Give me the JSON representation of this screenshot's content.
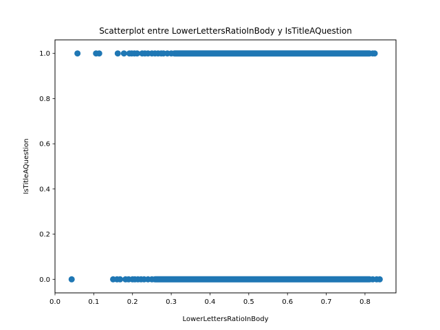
{
  "chart_data": {
    "type": "scatter",
    "title": "Scatterplot entre LowerLettersRatioInBody y IsTitleAQuestion",
    "xlabel": "LowerLettersRatioInBody",
    "ylabel": "IsTitleAQuestion",
    "xlim": [
      0.0,
      0.88
    ],
    "ylim": [
      -0.06,
      1.06
    ],
    "xticks": [
      0.0,
      0.1,
      0.2,
      0.3,
      0.4,
      0.5,
      0.6,
      0.7,
      0.8
    ],
    "yticks": [
      0.0,
      0.2,
      0.4,
      0.6,
      0.8,
      1.0
    ],
    "grid": false,
    "marker_color": "#1f77b4",
    "series": [
      {
        "y_value": 1.0,
        "x": [
          0.058,
          0.106,
          0.114,
          0.162,
          0.178,
          0.192,
          0.198,
          0.205,
          0.212,
          0.225,
          0.232,
          0.24,
          0.25,
          0.258,
          0.266,
          0.274,
          0.28,
          0.29,
          0.3,
          0.82,
          0.825
        ],
        "dense_range": [
          0.3,
          0.82
        ]
      },
      {
        "y_value": 0.0,
        "x": [
          0.043,
          0.15,
          0.16,
          0.168,
          0.182,
          0.19,
          0.2,
          0.206,
          0.214,
          0.222,
          0.23,
          0.24,
          0.25,
          0.82,
          0.83,
          0.838
        ],
        "dense_range": [
          0.25,
          0.82
        ]
      }
    ]
  }
}
